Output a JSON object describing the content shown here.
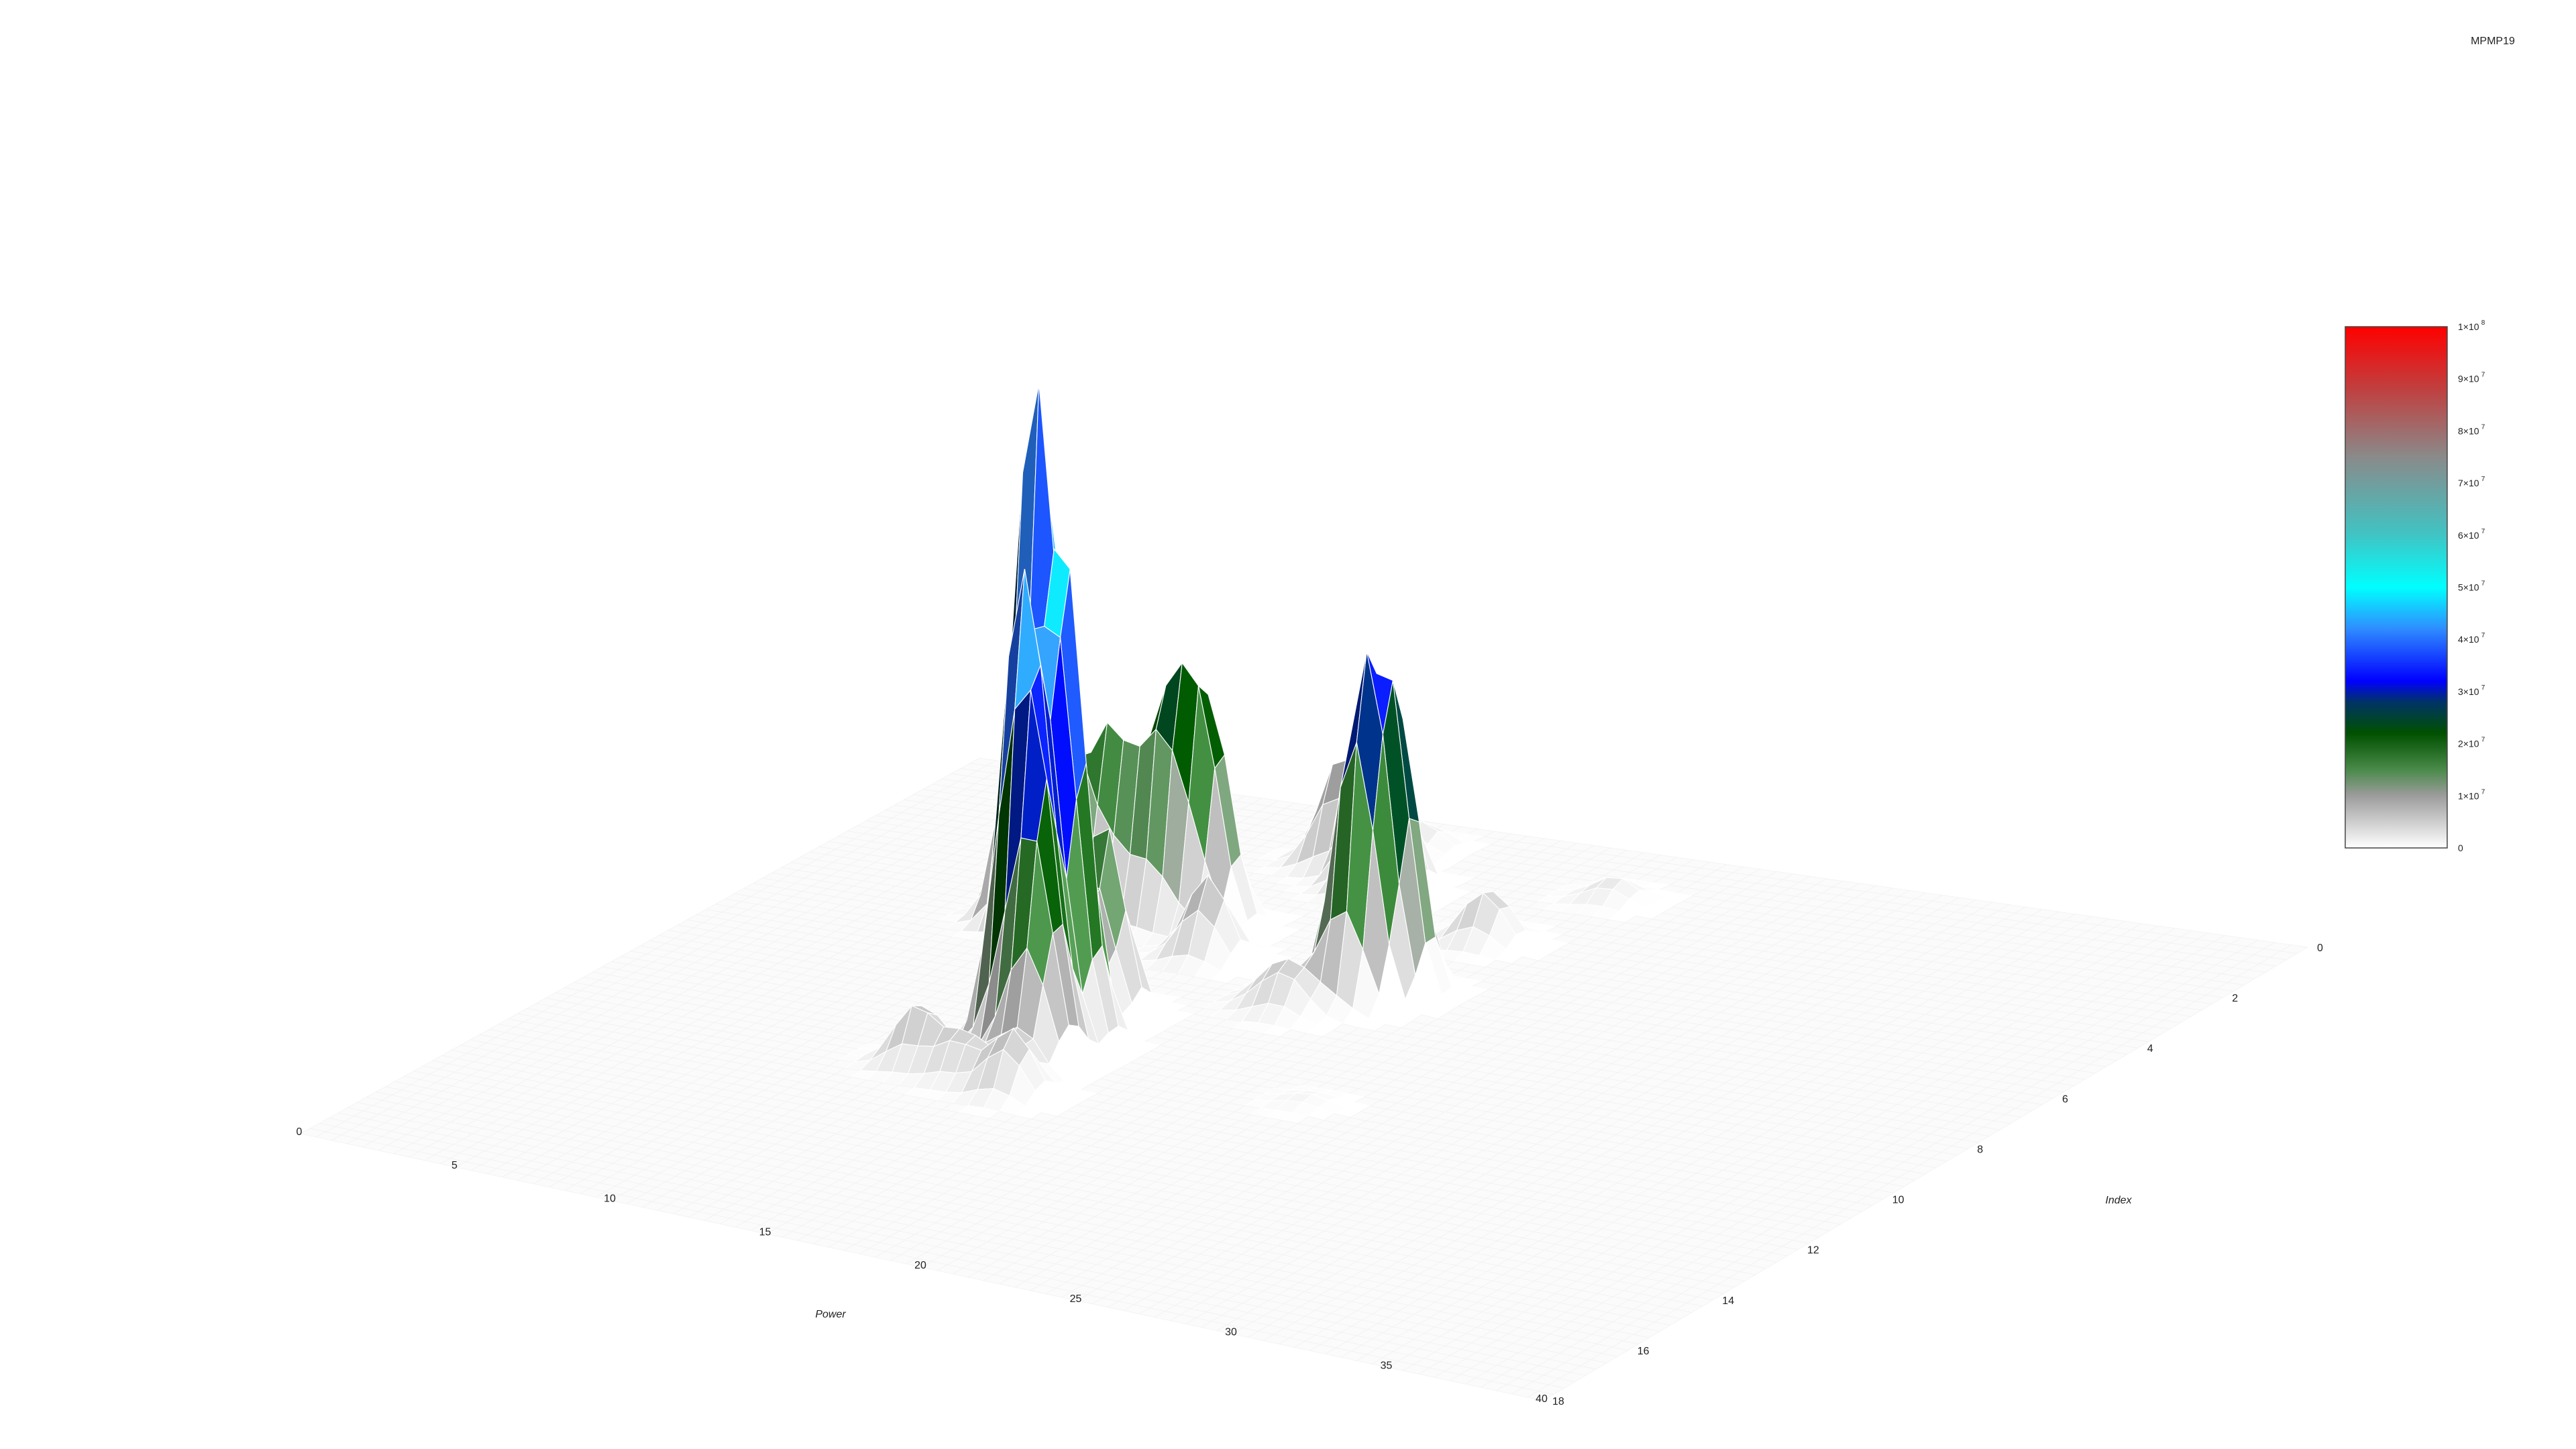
{
  "chart_data": {
    "type": "surface",
    "title": "MPMP19",
    "xlabel": "Power",
    "ylabel": "Index",
    "xlim": [
      0,
      40
    ],
    "ylim": [
      0,
      18
    ],
    "x_ticks": [
      "0",
      "5",
      "10",
      "15",
      "20",
      "25",
      "30",
      "35",
      "40"
    ],
    "y_ticks": [
      "0",
      "2",
      "4",
      "6",
      "8",
      "10",
      "12",
      "14",
      "16",
      "18"
    ],
    "colorbar": {
      "min": 0,
      "max": 100000000,
      "ticks": [
        {
          "mantissa": "1×10",
          "exponent": "8",
          "value": 100000000
        },
        {
          "mantissa": "9×10",
          "exponent": "7",
          "value": 90000000
        },
        {
          "mantissa": "8×10",
          "exponent": "7",
          "value": 80000000
        },
        {
          "mantissa": "7×10",
          "exponent": "7",
          "value": 70000000
        },
        {
          "mantissa": "6×10",
          "exponent": "7",
          "value": 60000000
        },
        {
          "mantissa": "5×10",
          "exponent": "7",
          "value": 50000000
        },
        {
          "mantissa": "4×10",
          "exponent": "7",
          "value": 40000000
        },
        {
          "mantissa": "3×10",
          "exponent": "7",
          "value": 30000000
        },
        {
          "mantissa": "2×10",
          "exponent": "7",
          "value": 20000000
        },
        {
          "mantissa": "1×10",
          "exponent": "7",
          "value": 10000000
        },
        {
          "mantissa": "0",
          "exponent": "",
          "value": 0
        }
      ],
      "stops": [
        {
          "value": 0,
          "color": "#ffffff"
        },
        {
          "value": 10000000,
          "color": "#9c9c9c"
        },
        {
          "value": 15000000,
          "color": "#4a8a4a"
        },
        {
          "value": 22000000,
          "color": "#005000"
        },
        {
          "value": 28000000,
          "color": "#003366"
        },
        {
          "value": 32000000,
          "color": "#0000ff"
        },
        {
          "value": 42000000,
          "color": "#2f8cff"
        },
        {
          "value": 50000000,
          "color": "#00ffff"
        },
        {
          "value": 60000000,
          "color": "#40c4c4"
        },
        {
          "value": 75000000,
          "color": "#8a8a8a"
        },
        {
          "value": 88000000,
          "color": "#c04040"
        },
        {
          "value": 100000000,
          "color": "#ff0000"
        }
      ]
    },
    "peaks": [
      {
        "x": 3.5,
        "y": 0.8,
        "z": 3000000
      },
      {
        "x": 14.5,
        "y": 1.0,
        "z": 3000000
      },
      {
        "x": 21.3,
        "y": 1.8,
        "z": 2500000
      },
      {
        "x": 7.0,
        "y": 2.0,
        "z": 4000000
      },
      {
        "x": 20.0,
        "y": 3.9,
        "z": 6000000
      },
      {
        "x": 12.5,
        "y": 5.0,
        "z": 7000000
      },
      {
        "x": 14.0,
        "y": 6.0,
        "z": 9000000
      },
      {
        "x": 10.6,
        "y": 4.1,
        "z": 12000000
      },
      {
        "x": 12.6,
        "y": 4.8,
        "z": 18000000
      },
      {
        "x": 10.0,
        "y": 5.2,
        "z": 20000000
      },
      {
        "x": 11.5,
        "y": 5.1,
        "z": 21000000
      },
      {
        "x": 8.4,
        "y": 5.7,
        "z": 60000000
      },
      {
        "x": 15.4,
        "y": 2.8,
        "z": 6000000
      },
      {
        "x": 13.3,
        "y": 2.0,
        "z": 12000000
      },
      {
        "x": 15.1,
        "y": 2.5,
        "z": 20000000
      },
      {
        "x": 19.9,
        "y": 6.1,
        "z": 30000000
      },
      {
        "x": 19.4,
        "y": 6.6,
        "z": 32000000
      },
      {
        "x": 22.4,
        "y": 10.3,
        "z": 1000000
      },
      {
        "x": 18.3,
        "y": 7.4,
        "z": 4000000
      },
      {
        "x": 17.5,
        "y": 7.2,
        "z": 3000000
      },
      {
        "x": 11.6,
        "y": 11.4,
        "z": 7000000
      },
      {
        "x": 13.2,
        "y": 11.6,
        "z": 5000000
      },
      {
        "x": 15.0,
        "y": 11.8,
        "z": 7000000
      },
      {
        "x": 13.8,
        "y": 8.5,
        "z": 21000000
      },
      {
        "x": 13.4,
        "y": 9.4,
        "z": 30000000
      },
      {
        "x": 14.0,
        "y": 9.6,
        "z": 34000000
      },
      {
        "x": 13.3,
        "y": 10.2,
        "z": 44000000
      },
      {
        "x": 14.2,
        "y": 10.5,
        "z": 26000000
      },
      {
        "x": 14.6,
        "y": 10.9,
        "z": 10000000
      }
    ]
  }
}
